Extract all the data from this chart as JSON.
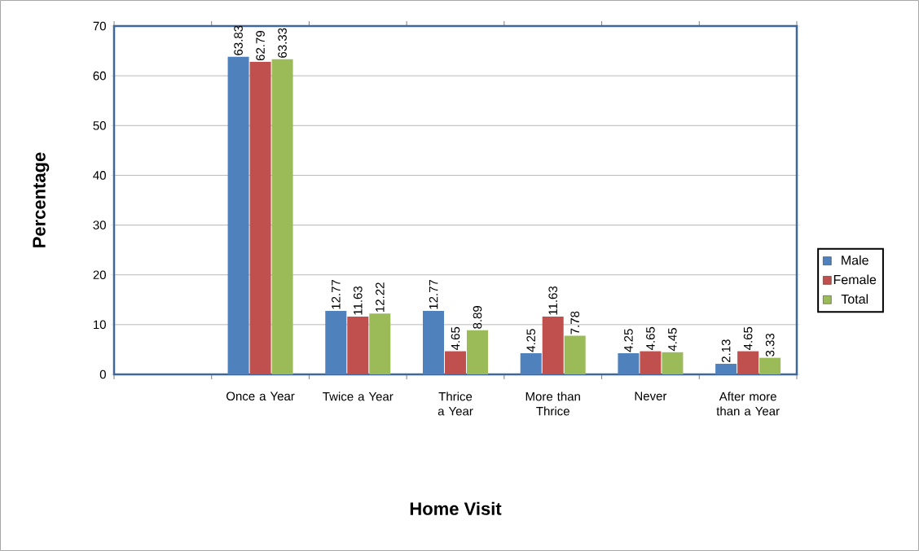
{
  "chart_data": {
    "type": "bar",
    "xlabel": "Home Visit",
    "ylabel": "Percentage",
    "categories": [
      null,
      "Once a Year",
      "Twice a Year",
      "Thrice a Year",
      "More than Thrice",
      "Never",
      "After more than a Year"
    ],
    "series": [
      {
        "name": "Male",
        "color": "#4f81bd",
        "values": [
          null,
          63.83,
          12.77,
          12.77,
          4.25,
          4.25,
          2.13
        ]
      },
      {
        "name": "Female",
        "color": "#c0504d",
        "values": [
          null,
          62.79,
          11.63,
          4.65,
          11.63,
          4.65,
          4.65
        ]
      },
      {
        "name": "Total",
        "color": "#9bbb59",
        "values": [
          null,
          63.33,
          12.22,
          8.89,
          7.78,
          4.45,
          3.33
        ]
      }
    ],
    "ylim": [
      0,
      70
    ],
    "yticks": [
      0,
      10,
      20,
      30,
      40,
      50,
      60,
      70
    ],
    "grid": "y",
    "legend": "right",
    "data_labels": true
  }
}
